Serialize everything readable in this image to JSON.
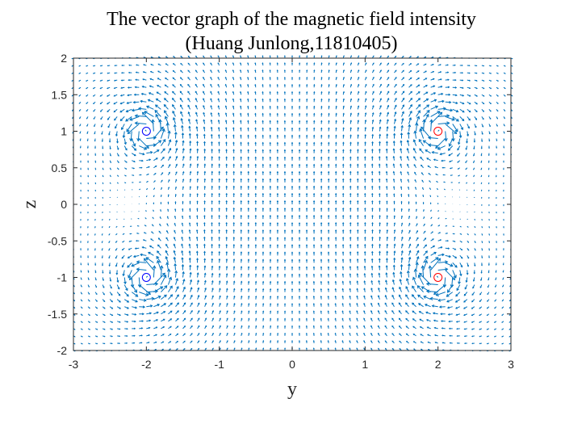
{
  "chart_data": {
    "type": "quiver",
    "title_line1": "The vector graph of the magnetic field intensity",
    "title_line2": "(Huang Junlong,11810405)",
    "xlabel": "y",
    "ylabel": "z",
    "xlim": [
      -3,
      3
    ],
    "ylim": [
      -2,
      2
    ],
    "xticks": [
      -3,
      -2,
      -1,
      0,
      1,
      2,
      3
    ],
    "yticks": [
      -2,
      -1.5,
      -1,
      -0.5,
      0,
      0.5,
      1,
      1.5,
      2
    ],
    "x_tick_labels": [
      "-3",
      "-2",
      "-1",
      "0",
      "1",
      "2",
      "3"
    ],
    "y_tick_labels": [
      "-2",
      "-1.5",
      "-1",
      "-0.5",
      "0",
      "0.5",
      "1",
      "1.5",
      "2"
    ],
    "grid": false,
    "arrow_color": "#0072BD",
    "grid_step": 0.1,
    "wires": [
      {
        "y": -2,
        "z": 1,
        "current": 1,
        "color": "#0000FF"
      },
      {
        "y": -2,
        "z": -1,
        "current": 1,
        "color": "#0000FF"
      },
      {
        "y": 2,
        "z": 1,
        "current": -1,
        "color": "#FF0000"
      },
      {
        "y": 2,
        "z": -1,
        "current": -1,
        "color": "#FF0000"
      }
    ]
  }
}
